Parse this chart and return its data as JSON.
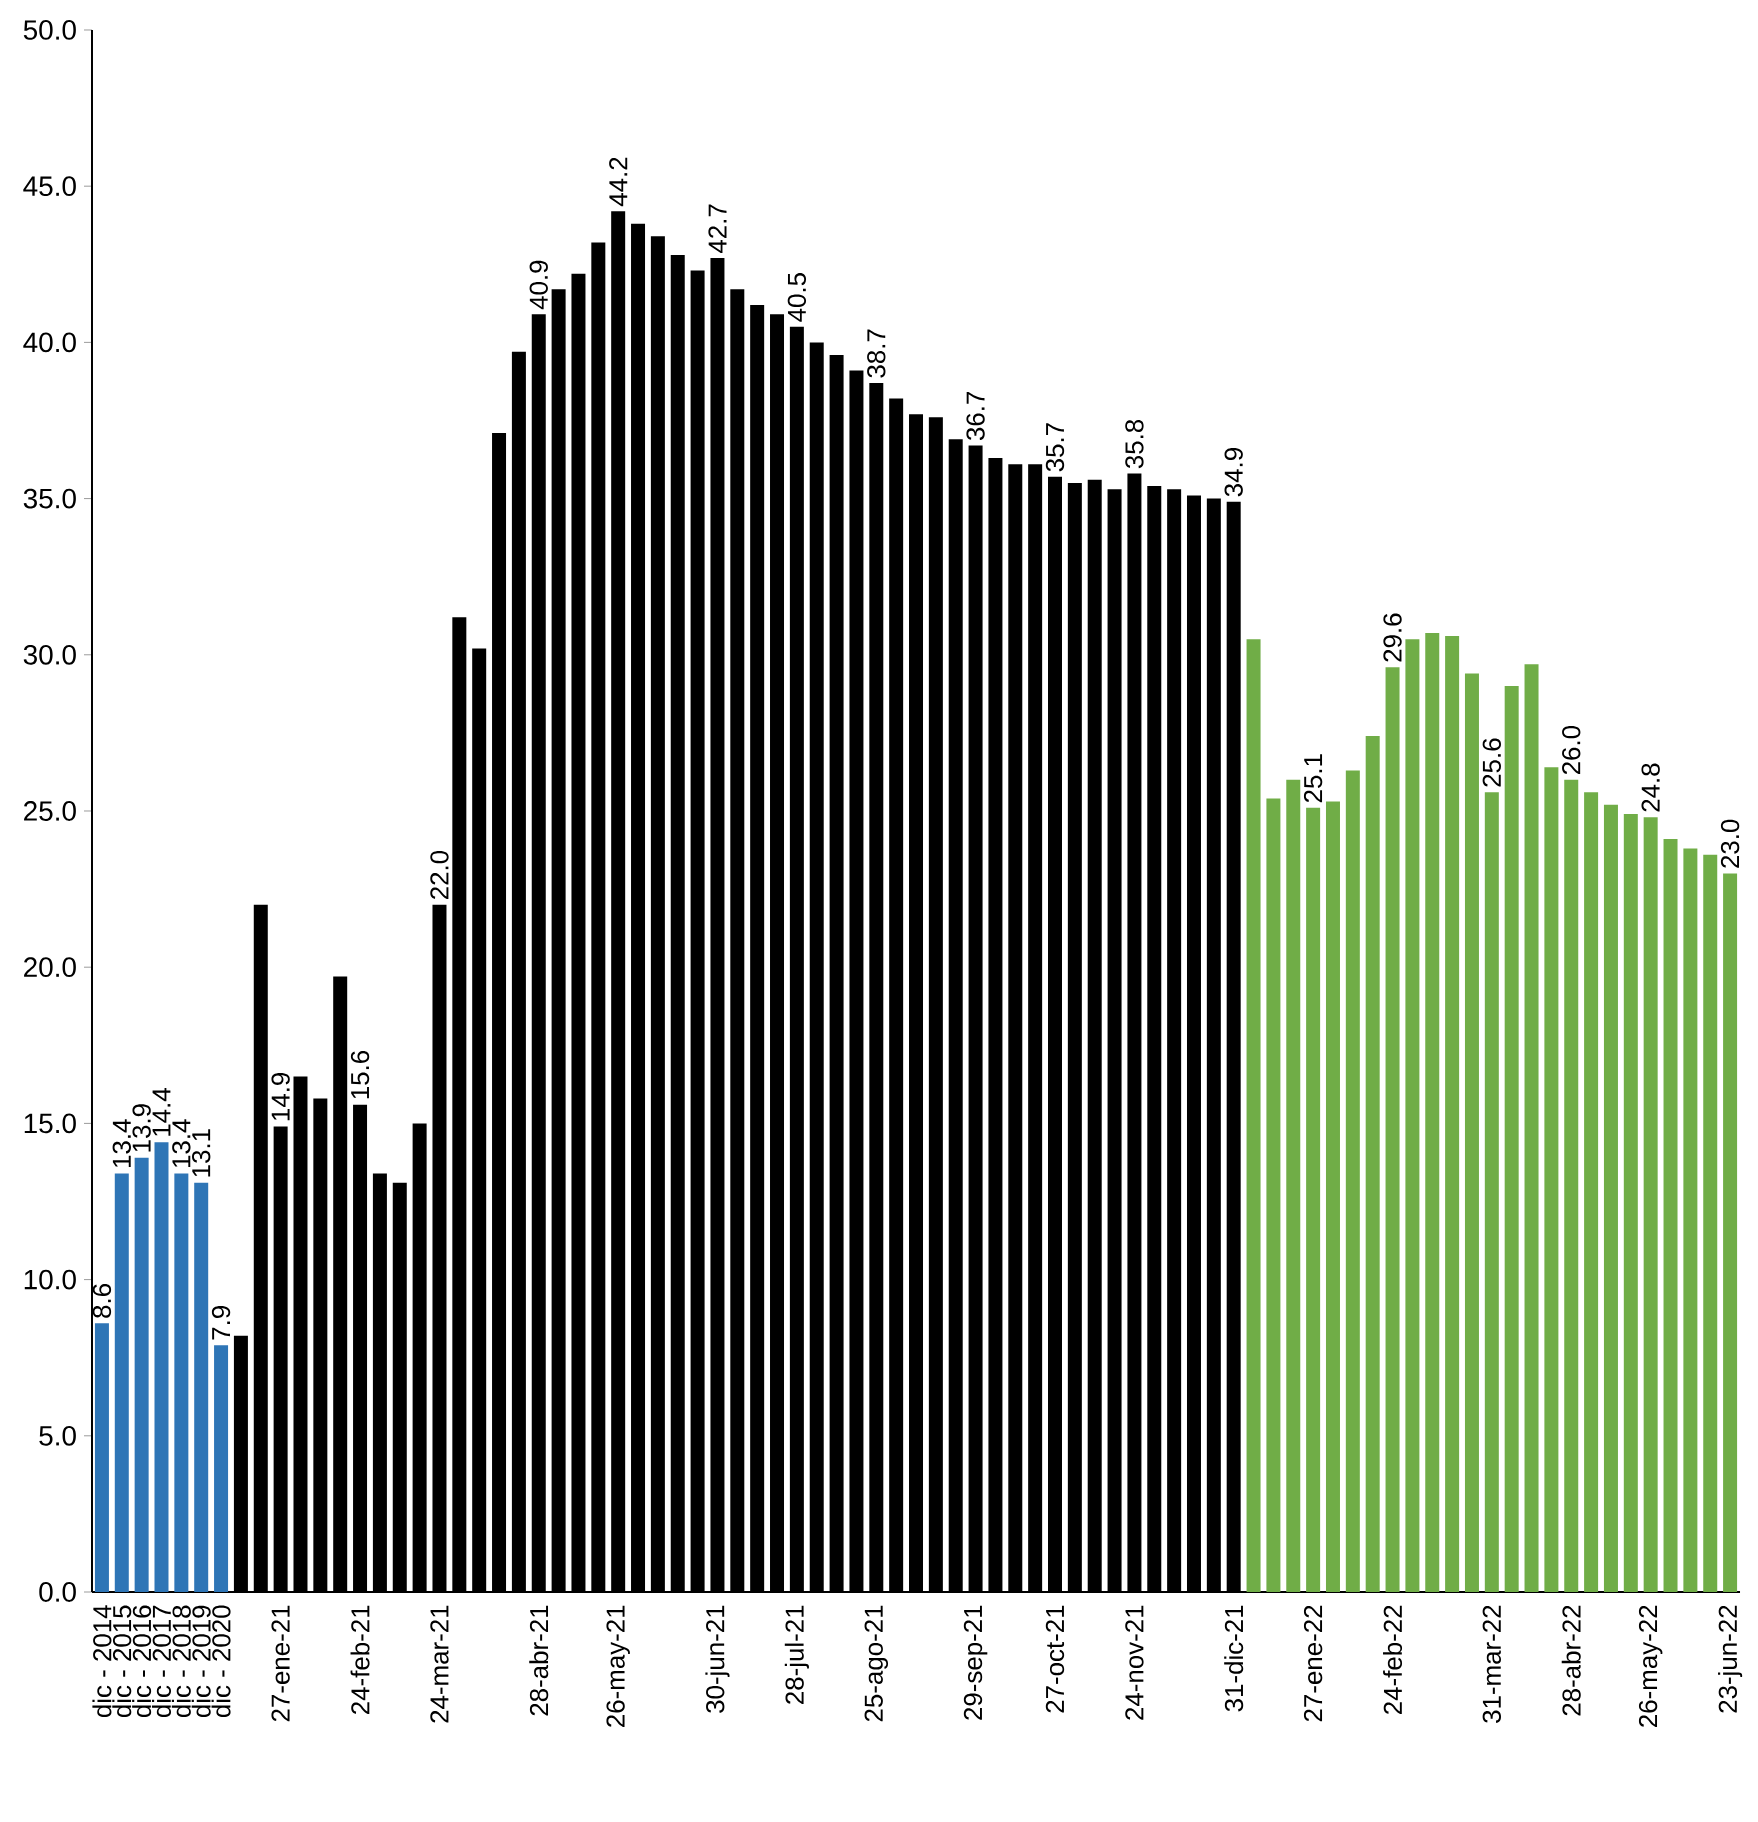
{
  "chart_data": {
    "type": "bar",
    "categories": [
      "dic - 2014",
      "dic - 2015",
      "dic - 2016",
      "dic - 2017",
      "dic - 2018",
      "dic - 2019",
      "dic - 2020",
      null,
      null,
      "27-ene-21",
      null,
      null,
      null,
      "24-feb-21",
      null,
      null,
      null,
      "24-mar-21",
      null,
      null,
      null,
      null,
      "28-abr-21",
      null,
      null,
      null,
      "26-may-21",
      null,
      null,
      null,
      null,
      "30-jun-21",
      null,
      null,
      null,
      "28-jul-21",
      null,
      null,
      null,
      "25-ago-21",
      null,
      null,
      null,
      null,
      "29-sep-21",
      null,
      null,
      null,
      "27-oct-21",
      null,
      null,
      null,
      "24-nov-21",
      null,
      null,
      null,
      null,
      "31-dic-21",
      null,
      null,
      null,
      "27-ene-22",
      null,
      null,
      null,
      "24-feb-22",
      null,
      null,
      null,
      null,
      "31-mar-22",
      null,
      null,
      null,
      "28-abr-22",
      null,
      null,
      null,
      "26-may-22",
      null,
      null,
      null,
      "23-jun-22"
    ],
    "values": [
      8.6,
      13.4,
      13.9,
      14.4,
      13.4,
      13.1,
      7.9,
      8.2,
      22.0,
      14.9,
      16.5,
      15.8,
      19.7,
      15.6,
      13.4,
      13.1,
      15.0,
      22.0,
      31.2,
      30.2,
      37.1,
      39.7,
      40.9,
      41.7,
      42.2,
      43.2,
      44.2,
      43.8,
      43.4,
      42.8,
      42.3,
      42.7,
      41.7,
      41.2,
      40.9,
      40.5,
      40.0,
      39.6,
      39.1,
      38.7,
      38.2,
      37.7,
      37.6,
      36.9,
      36.7,
      36.3,
      36.1,
      36.1,
      35.7,
      35.5,
      35.6,
      35.3,
      35.8,
      35.4,
      35.3,
      35.1,
      35.0,
      34.9,
      30.5,
      25.4,
      26.0,
      25.1,
      25.3,
      26.3,
      27.4,
      29.6,
      30.5,
      30.7,
      30.6,
      29.4,
      25.6,
      29.0,
      29.7,
      26.4,
      26.0,
      25.6,
      25.2,
      24.9,
      24.8,
      24.1,
      23.8,
      23.6,
      23.0
    ],
    "value_labels": [
      "8.6",
      "13.4",
      "13.9",
      "14.4",
      "13.4",
      "13.1",
      "7.9",
      null,
      null,
      "14.9",
      null,
      null,
      null,
      "15.6",
      null,
      null,
      null,
      "22.0",
      null,
      null,
      null,
      null,
      "40.9",
      null,
      null,
      null,
      "44.2",
      null,
      null,
      null,
      null,
      "42.7",
      null,
      null,
      null,
      "40.5",
      null,
      null,
      null,
      "38.7",
      null,
      null,
      null,
      null,
      "36.7",
      null,
      null,
      null,
      "35.7",
      null,
      null,
      null,
      "35.8",
      null,
      null,
      null,
      null,
      "34.9",
      null,
      null,
      null,
      "25.1",
      null,
      null,
      null,
      "29.6",
      null,
      null,
      null,
      null,
      "25.6",
      null,
      null,
      null,
      "26.0",
      null,
      null,
      null,
      "24.8",
      null,
      null,
      null,
      "23.0"
    ],
    "colors": [
      "#2e75b6",
      "#2e75b6",
      "#2e75b6",
      "#2e75b6",
      "#2e75b6",
      "#2e75b6",
      "#2e75b6",
      "#000000",
      "#000000",
      "#000000",
      "#000000",
      "#000000",
      "#000000",
      "#000000",
      "#000000",
      "#000000",
      "#000000",
      "#000000",
      "#000000",
      "#000000",
      "#000000",
      "#000000",
      "#000000",
      "#000000",
      "#000000",
      "#000000",
      "#000000",
      "#000000",
      "#000000",
      "#000000",
      "#000000",
      "#000000",
      "#000000",
      "#000000",
      "#000000",
      "#000000",
      "#000000",
      "#000000",
      "#000000",
      "#000000",
      "#000000",
      "#000000",
      "#000000",
      "#000000",
      "#000000",
      "#000000",
      "#000000",
      "#000000",
      "#000000",
      "#000000",
      "#000000",
      "#000000",
      "#000000",
      "#000000",
      "#000000",
      "#000000",
      "#000000",
      "#000000",
      "#70ad47",
      "#70ad47",
      "#70ad47",
      "#70ad47",
      "#70ad47",
      "#70ad47",
      "#70ad47",
      "#70ad47",
      "#70ad47",
      "#70ad47",
      "#70ad47",
      "#70ad47",
      "#70ad47",
      "#70ad47",
      "#70ad47",
      "#70ad47",
      "#70ad47",
      "#70ad47",
      "#70ad47",
      "#70ad47",
      "#70ad47",
      "#70ad47",
      "#70ad47",
      "#70ad47",
      "#70ad47"
    ],
    "ylim": [
      0,
      50
    ],
    "yticks": [
      {
        "value": 0,
        "label": "0.0"
      },
      {
        "value": 5,
        "label": "5.0"
      },
      {
        "value": 10,
        "label": "10.0"
      },
      {
        "value": 15,
        "label": "15.0"
      },
      {
        "value": 20,
        "label": "20.0"
      },
      {
        "value": 25,
        "label": "25.0"
      },
      {
        "value": 30,
        "label": "30.0"
      },
      {
        "value": 35,
        "label": "35.0"
      },
      {
        "value": 40,
        "label": "40.0"
      },
      {
        "value": 45,
        "label": "45.0"
      },
      {
        "value": 50,
        "label": "50.0"
      }
    ],
    "data_labels": false
  }
}
